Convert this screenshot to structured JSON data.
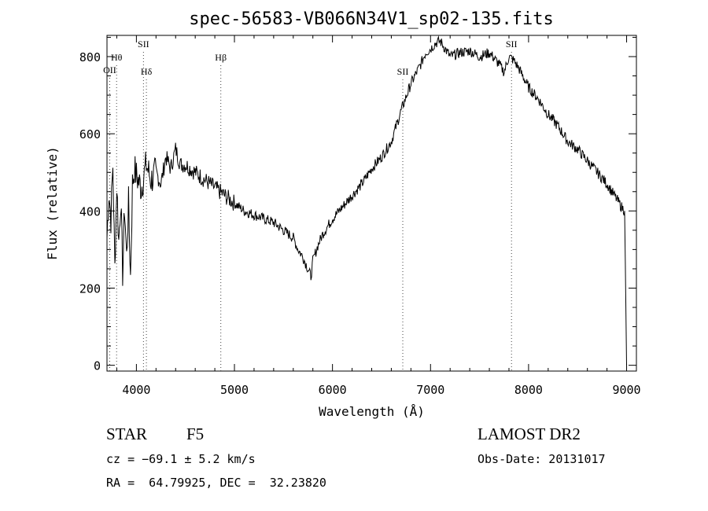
{
  "chart_data": {
    "type": "line",
    "title": "spec-56583-VB066N34V1_sp02-135.fits",
    "xlabel": "Wavelength (Å)",
    "ylabel": "Flux (relative)",
    "xlim": [
      3700,
      9100
    ],
    "ylim": [
      -15,
      855
    ],
    "x_ticks": [
      4000,
      5000,
      6000,
      7000,
      8000,
      9000
    ],
    "y_ticks": [
      0,
      200,
      400,
      600,
      800
    ],
    "grid": false,
    "series": [
      {
        "x": [
          3700,
          3720,
          3740,
          3760,
          3780,
          3800,
          3820,
          3840,
          3860,
          3880,
          3900,
          3920,
          3940,
          3960,
          3980,
          4000,
          4050,
          4100,
          4150,
          4200,
          4250,
          4300,
          4350,
          4400,
          4450,
          4500,
          4550,
          4600,
          4650,
          4700,
          4750,
          4800,
          4850,
          4900,
          4950,
          5000,
          5100,
          5200,
          5300,
          5400,
          5500,
          5600,
          5650,
          5700,
          5750,
          5780,
          5800,
          5850,
          5900,
          5950,
          6000,
          6100,
          6200,
          6300,
          6400,
          6500,
          6600,
          6700,
          6800,
          6900,
          6950,
          7000,
          7050,
          7100,
          7150,
          7200,
          7300,
          7400,
          7500,
          7600,
          7700,
          7750,
          7800,
          7850,
          7900,
          8000,
          8100,
          8200,
          8300,
          8400,
          8500,
          8600,
          8700,
          8800,
          8900,
          8950,
          8980,
          9000
        ],
        "values": [
          330,
          450,
          380,
          520,
          250,
          470,
          320,
          430,
          240,
          410,
          280,
          420,
          230,
          470,
          510,
          490,
          460,
          520,
          480,
          500,
          470,
          540,
          510,
          560,
          520,
          520,
          510,
          500,
          490,
          480,
          470,
          460,
          450,
          440,
          430,
          420,
          400,
          390,
          380,
          370,
          350,
          330,
          300,
          280,
          250,
          230,
          270,
          310,
          340,
          360,
          380,
          410,
          440,
          470,
          510,
          540,
          580,
          660,
          730,
          780,
          810,
          820,
          835,
          840,
          820,
          800,
          810,
          815,
          800,
          810,
          780,
          760,
          800,
          790,
          770,
          720,
          690,
          650,
          620,
          580,
          560,
          530,
          500,
          470,
          430,
          410,
          400,
          0
        ]
      }
    ],
    "line_markers": [
      {
        "label": "OII",
        "x": 3728
      },
      {
        "label": "Hθ",
        "x": 3798
      },
      {
        "label": "SII",
        "x": 4072
      },
      {
        "label": "Hδ",
        "x": 4102
      },
      {
        "label": "Hβ",
        "x": 4861
      },
      {
        "label": "SII",
        "x": 6717
      },
      {
        "label": "SII",
        "x": 7826
      }
    ]
  },
  "info": {
    "object_class": "STAR",
    "subclass": "F5",
    "survey": "LAMOST DR2",
    "cz": "cz = −69.1 ± 5.2 km/s",
    "obs_date": "Obs-Date: 20131017",
    "coords": "RA =  64.79925, DEC =  32.23820"
  }
}
